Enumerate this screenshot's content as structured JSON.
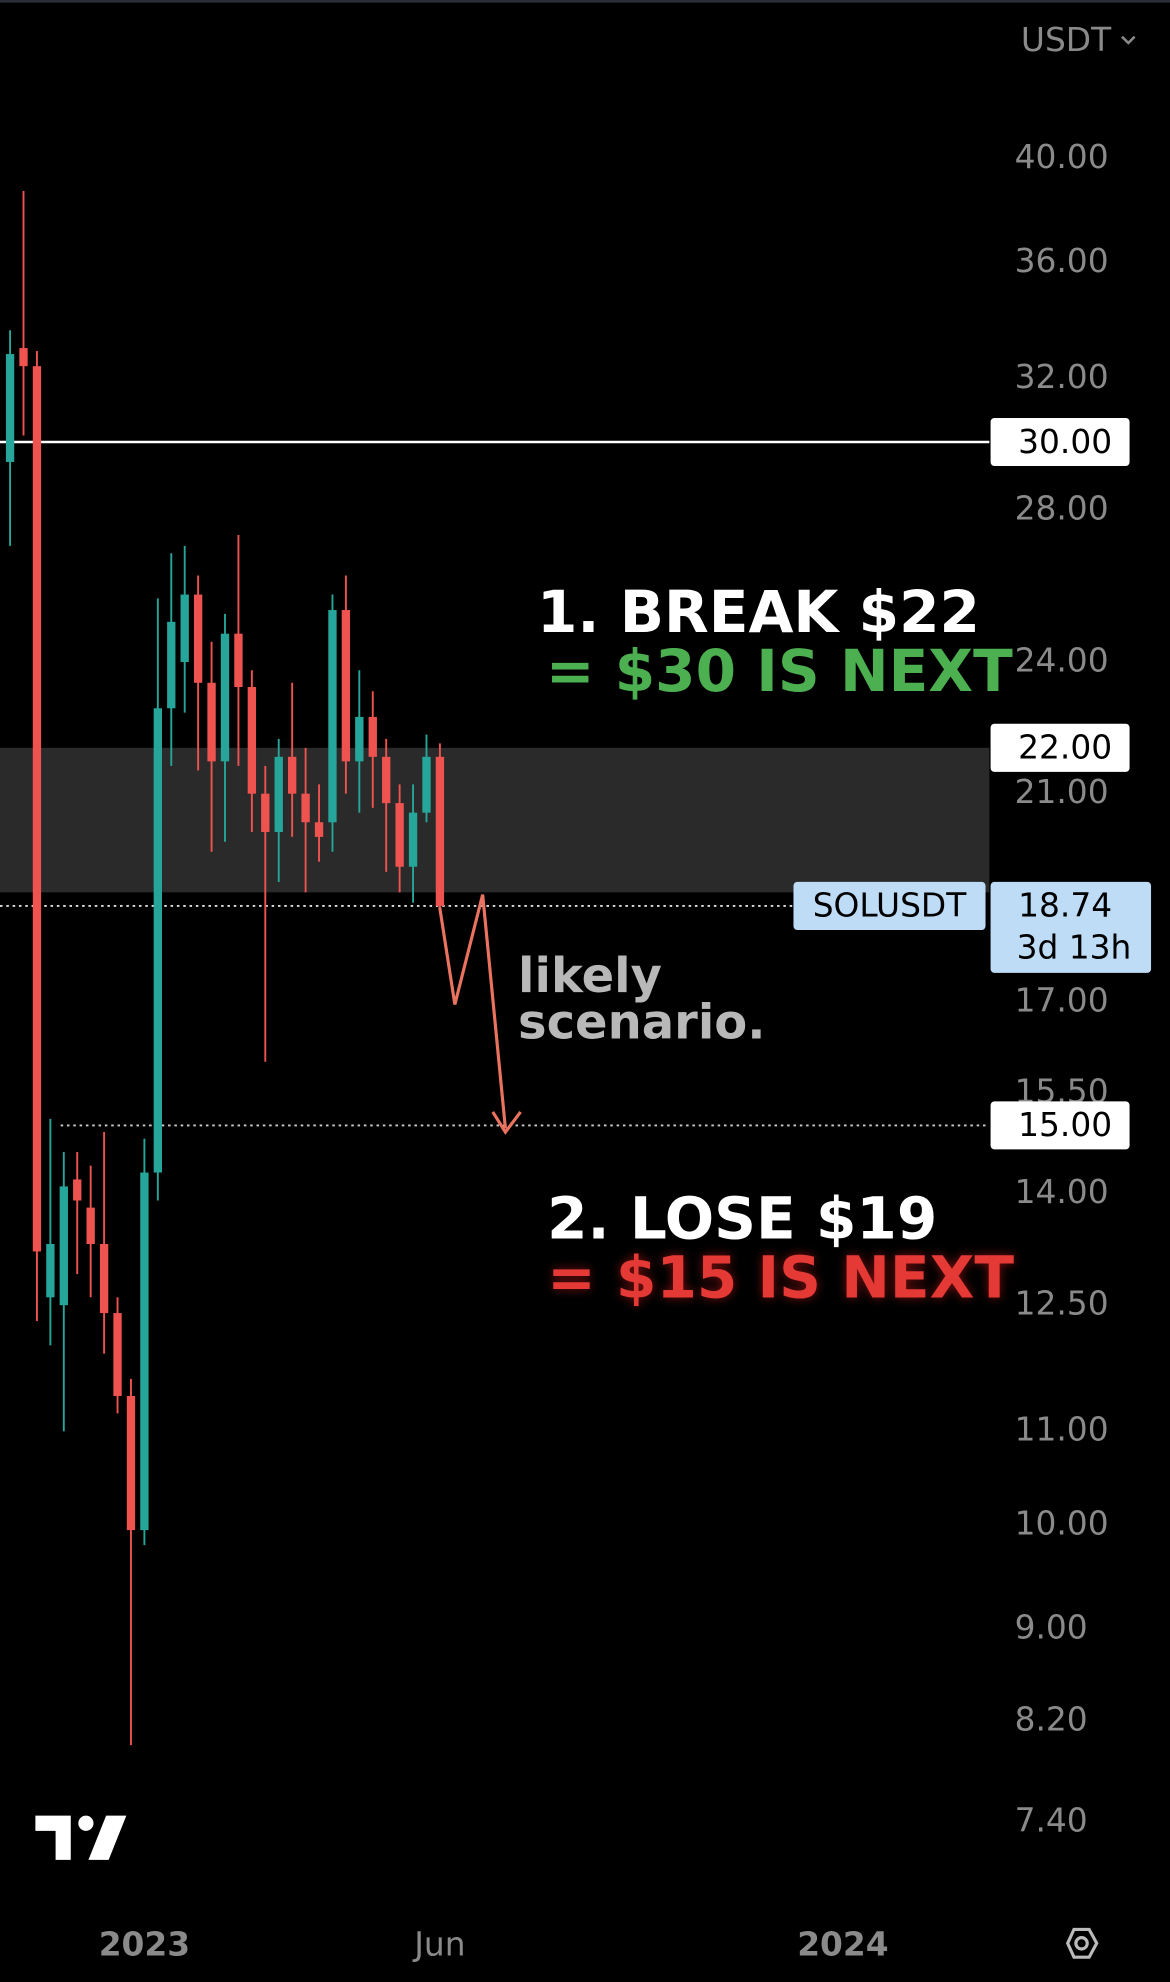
{
  "chart_data": {
    "type": "candlestick",
    "unit": "USDT",
    "categories": [
      null,
      null,
      null,
      null,
      null,
      null,
      null,
      null,
      null,
      null,
      null,
      null,
      null,
      null,
      null,
      null,
      null,
      null,
      null,
      null,
      null,
      null,
      null,
      null,
      null,
      null,
      null,
      null,
      null,
      null,
      null,
      null,
      null
    ],
    "open": [
      29.4,
      33.0,
      32.4,
      12.6,
      12.5,
      14.2,
      13.8,
      13.3,
      12.4,
      11.4,
      9.95,
      14.3,
      22.9,
      24.0,
      25.7,
      23.5,
      21.7,
      24.7,
      23.4,
      21.0,
      20.2,
      21.8,
      21.0,
      20.4,
      20.4,
      25.3,
      21.7,
      22.7,
      21.8,
      20.8,
      19.5,
      20.6,
      21.8
    ],
    "high": [
      33.6,
      38.7,
      32.9,
      15.1,
      14.6,
      14.6,
      14.4,
      14.9,
      12.6,
      11.6,
      14.8,
      25.6,
      26.8,
      27.0,
      26.2,
      24.5,
      25.2,
      27.3,
      23.8,
      21.6,
      22.2,
      23.5,
      22.0,
      21.2,
      25.7,
      26.2,
      23.8,
      23.3,
      22.2,
      21.2,
      21.2,
      22.3,
      22.1
    ],
    "low": [
      27.0,
      30.2,
      12.3,
      12.0,
      11.0,
      12.9,
      12.6,
      11.9,
      11.2,
      8.0,
      9.8,
      13.9,
      21.6,
      22.8,
      21.5,
      19.8,
      20.0,
      21.6,
      20.2,
      16.0,
      19.2,
      20.1,
      19.0,
      19.6,
      19.8,
      21.0,
      20.6,
      20.7,
      19.4,
      19.0,
      18.8,
      20.4,
      18.6
    ],
    "close": [
      32.8,
      32.4,
      13.2,
      13.3,
      14.1,
      13.9,
      13.3,
      12.4,
      11.4,
      9.95,
      14.3,
      22.9,
      25.0,
      25.7,
      23.5,
      21.7,
      24.7,
      23.4,
      21.0,
      20.2,
      21.8,
      21.0,
      20.4,
      20.1,
      25.3,
      21.7,
      22.7,
      21.8,
      20.8,
      19.5,
      20.6,
      21.8,
      18.74
    ],
    "up_color": "#26a69a",
    "down_color": "#ef5350",
    "log_scale": true,
    "ylim": [
      6.8,
      46.97
    ],
    "yticks": [
      {
        "value": 40,
        "label": "40.00"
      },
      {
        "value": 36,
        "label": "36.00"
      },
      {
        "value": 32,
        "label": "32.00"
      },
      {
        "value": 28,
        "label": "28.00"
      },
      {
        "value": 24,
        "label": "24.00"
      },
      {
        "value": 21,
        "label": "21.00"
      },
      {
        "value": 17,
        "label": "17.00"
      },
      {
        "value": 15.5,
        "label": "15.50"
      },
      {
        "value": 14,
        "label": "14.00"
      },
      {
        "value": 12.5,
        "label": "12.50"
      },
      {
        "value": 11,
        "label": "11.00"
      },
      {
        "value": 10,
        "label": "10.00"
      },
      {
        "value": 9,
        "label": "9.00"
      },
      {
        "value": 8.2,
        "label": "8.20"
      },
      {
        "value": 7.4,
        "label": "7.40"
      }
    ],
    "xlim": [
      -0.75,
      72.9
    ],
    "xticks": [
      {
        "value": 10,
        "label": "2023"
      },
      {
        "value": 32,
        "label": "Jun"
      },
      {
        "value": 62,
        "label": "2024"
      }
    ],
    "zone": {
      "low": 19,
      "high": 22,
      "color": "#2a2a2a"
    },
    "levels": [
      {
        "value": 30,
        "label": "30.00",
        "style": "solid"
      },
      {
        "value": 22,
        "label": "22.00",
        "style": "none"
      },
      {
        "value": 15,
        "label": "15.00",
        "style": "dotted"
      }
    ],
    "last_price": {
      "symbol": "SOLUSDT",
      "value": 18.74,
      "countdown": "3d 13h",
      "color": "#bfdcf7"
    },
    "annotations": [
      "1. BREAK $22",
      "= $30 IS NEXT",
      "likely",
      "scenario.",
      "2. LOSE $19",
      "= $15 IS NEXT"
    ]
  }
}
